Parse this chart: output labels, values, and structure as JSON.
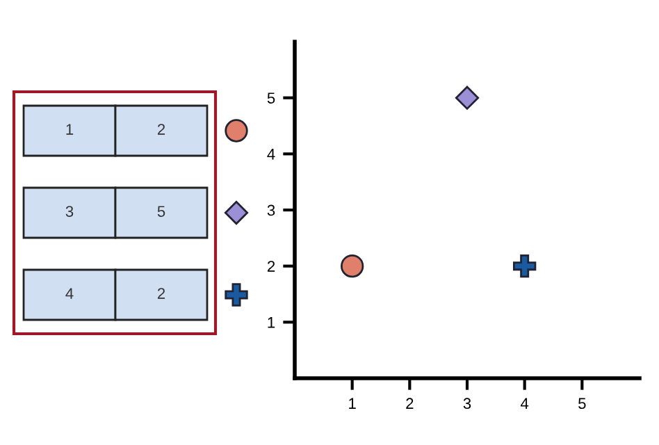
{
  "chart_data": [
    {
      "type": "other",
      "annotations": [
        "1",
        "2",
        "3",
        "5",
        "4",
        "2"
      ]
    },
    {
      "type": "scatter",
      "xlim": [
        0,
        6
      ],
      "ylim": [
        0,
        6
      ],
      "xticks": [
        1,
        2,
        3,
        4,
        5
      ],
      "yticks": [
        1,
        2,
        3,
        4,
        5
      ],
      "grid": false,
      "series": [
        {
          "x": [
            1
          ],
          "values": [
            2
          ],
          "color": "#e0806a",
          "marker": "circle"
        },
        {
          "x": [
            3
          ],
          "values": [
            5
          ],
          "color": "#9b8fd6",
          "marker": "diamond"
        },
        {
          "x": [
            4
          ],
          "values": [
            2
          ],
          "color": "#1a5aa0",
          "marker": "cross"
        }
      ]
    }
  ]
}
